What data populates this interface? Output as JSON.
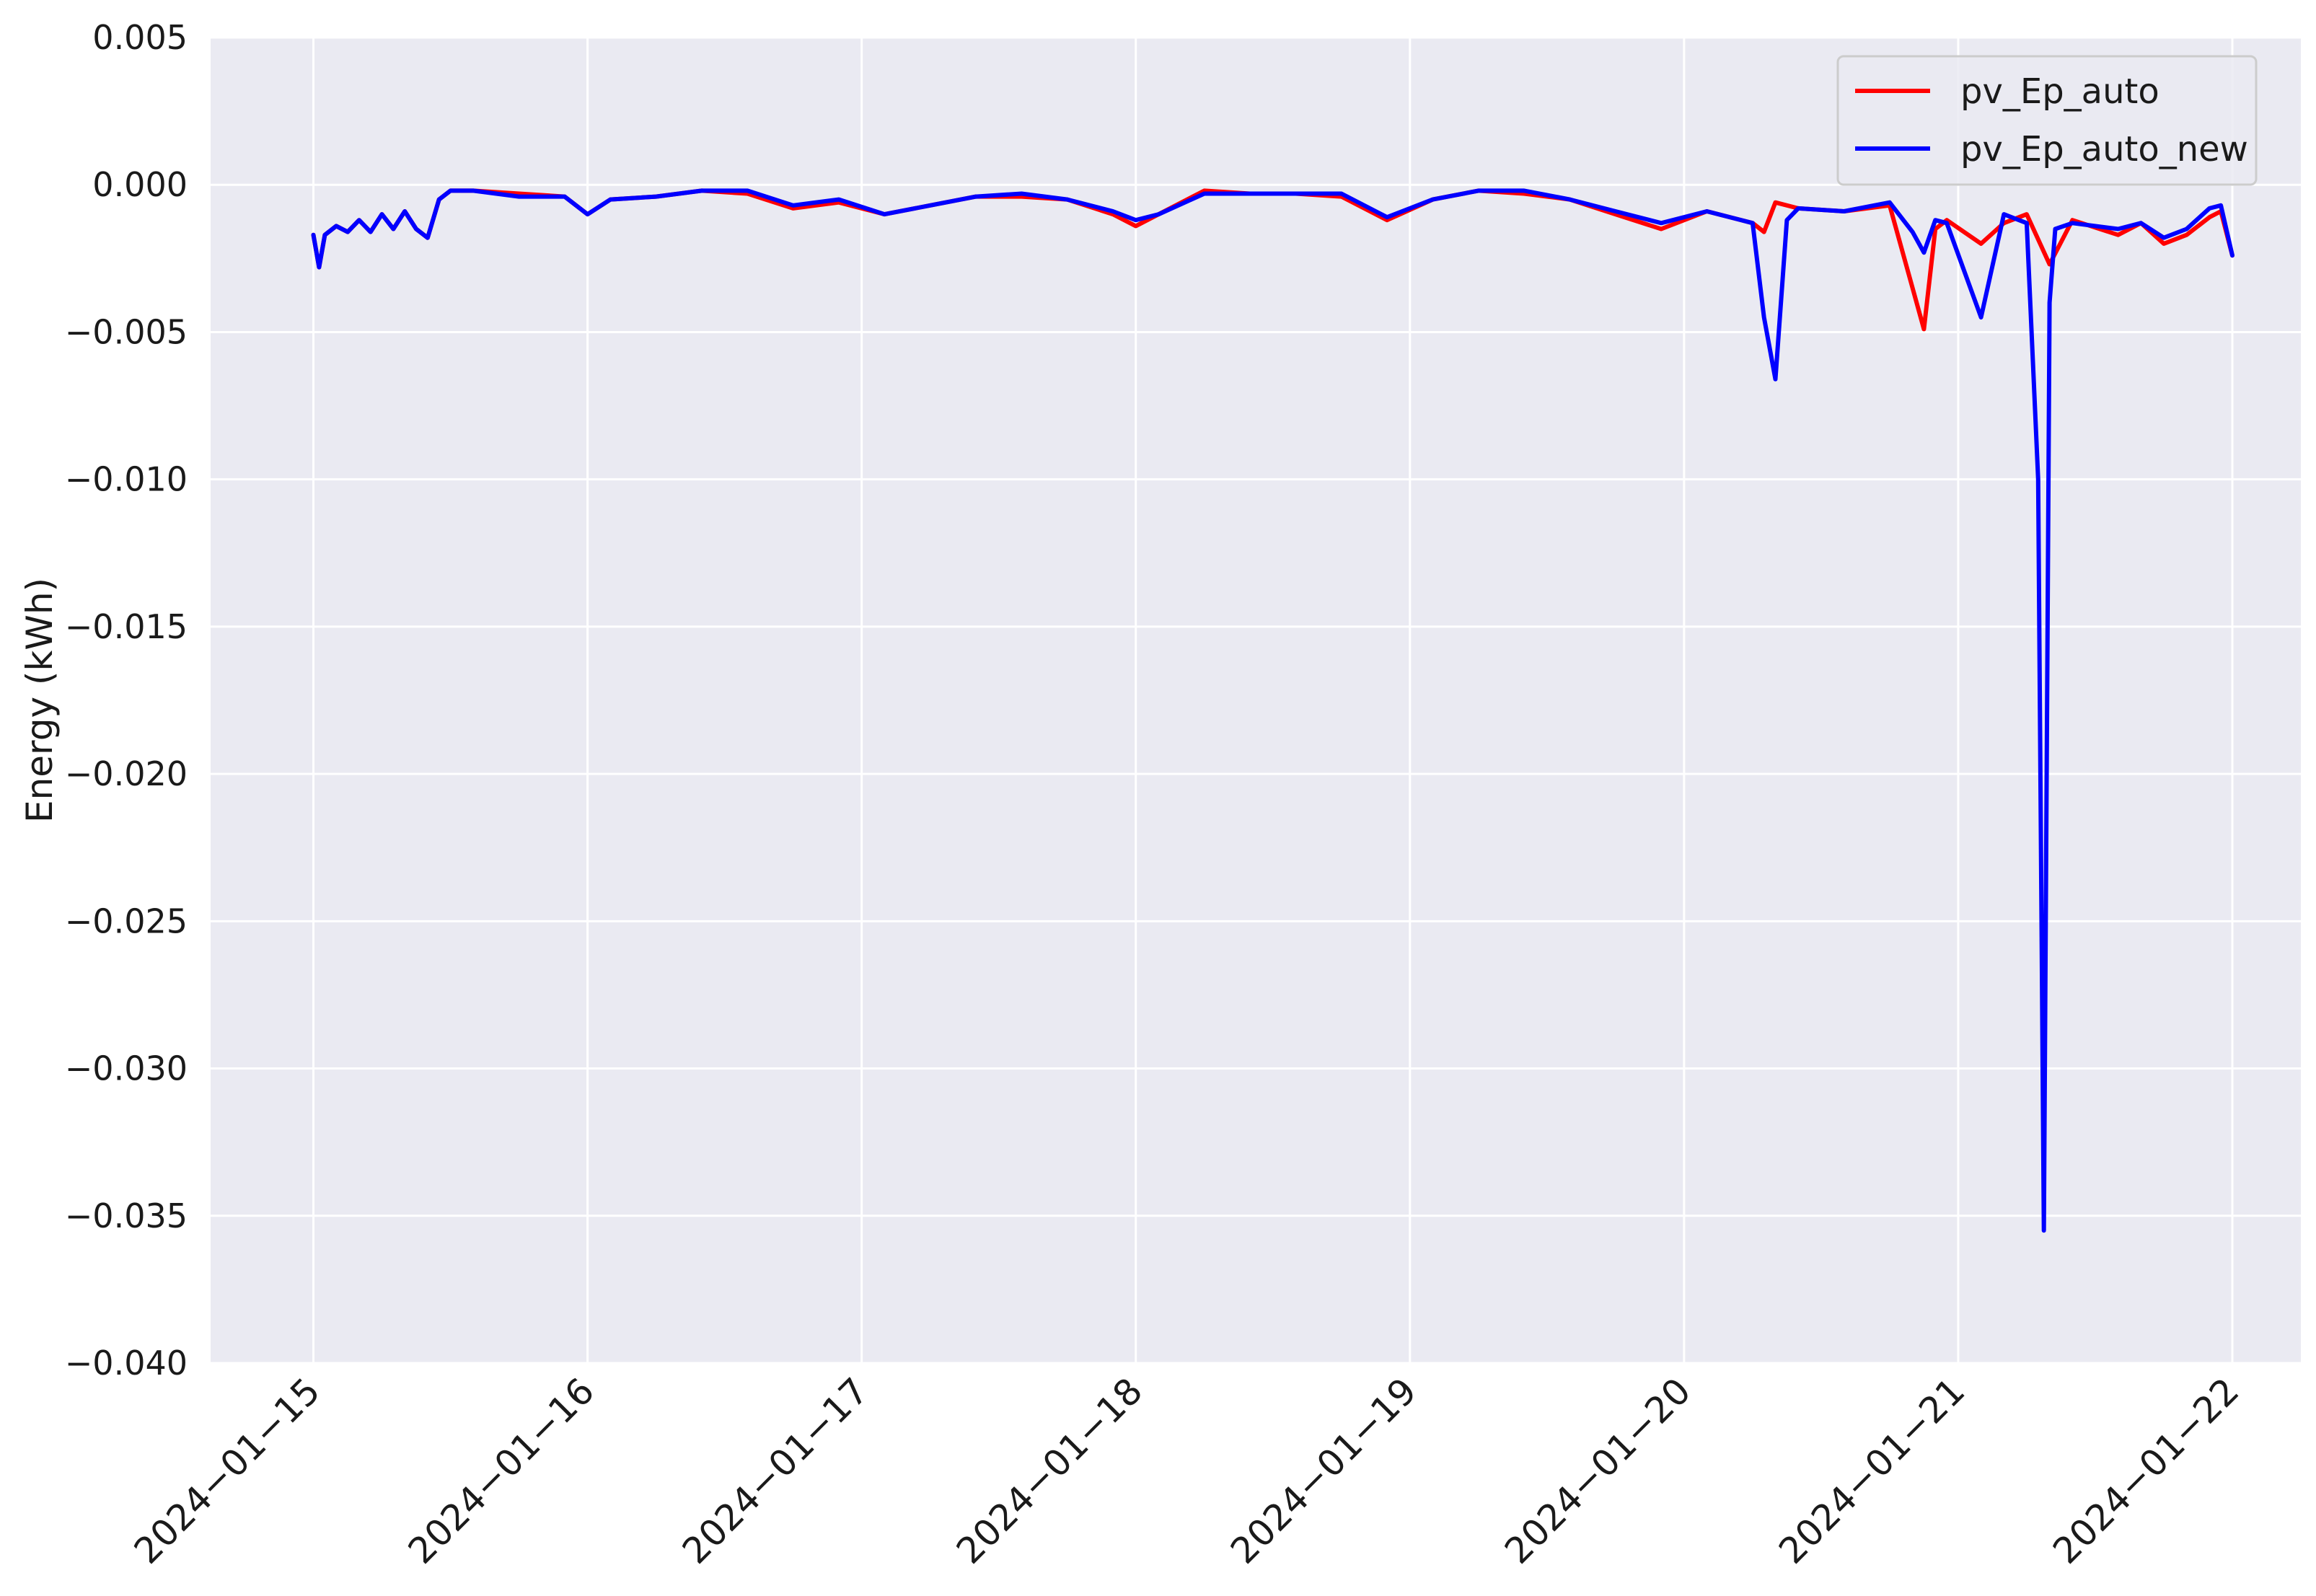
{
  "chart_data": {
    "type": "line",
    "title": "",
    "xlabel": "",
    "ylabel": "Energy (kWh)",
    "x_tick_labels": [
      "2024−01−15",
      "2024−01−16",
      "2024−01−17",
      "2024−01−18",
      "2024−01−19",
      "2024−01−20",
      "2024−01−21",
      "2024−01−22"
    ],
    "x_tick_dates": [
      "2024-01-15",
      "2024-01-16",
      "2024-01-17",
      "2024-01-18",
      "2024-01-19",
      "2024-01-20",
      "2024-01-21",
      "2024-01-22"
    ],
    "y_tick_labels": [
      "0.005",
      "0.000",
      "−0.005",
      "−0.010",
      "−0.015",
      "−0.020",
      "−0.025",
      "−0.030",
      "−0.035",
      "−0.040"
    ],
    "y_tick_values": [
      0.005,
      0.0,
      -0.005,
      -0.01,
      -0.015,
      -0.02,
      -0.025,
      -0.03,
      -0.035,
      -0.04
    ],
    "ylim": [
      -0.04,
      0.005
    ],
    "xlim": [
      "2024-01-14 15:00",
      "2024-01-22 06:00"
    ],
    "grid": true,
    "legend_position": "top-right",
    "series": [
      {
        "name": "pv_Ep_auto",
        "color": "#ff0000",
        "x": [
          "2024-01-15 00:00",
          "2024-01-15 00:30",
          "2024-01-15 01:00",
          "2024-01-15 02:00",
          "2024-01-15 03:00",
          "2024-01-15 04:00",
          "2024-01-15 05:00",
          "2024-01-15 06:00",
          "2024-01-15 07:00",
          "2024-01-15 08:00",
          "2024-01-15 09:00",
          "2024-01-15 10:00",
          "2024-01-15 11:00",
          "2024-01-15 12:00",
          "2024-01-15 14:00",
          "2024-01-15 18:00",
          "2024-01-15 22:00",
          "2024-01-16 00:00",
          "2024-01-16 02:00",
          "2024-01-16 06:00",
          "2024-01-16 10:00",
          "2024-01-16 14:00",
          "2024-01-16 18:00",
          "2024-01-16 22:00",
          "2024-01-17 02:00",
          "2024-01-17 06:00",
          "2024-01-17 10:00",
          "2024-01-17 14:00",
          "2024-01-17 18:00",
          "2024-01-17 22:00",
          "2024-01-18 00:00",
          "2024-01-18 02:00",
          "2024-01-18 06:00",
          "2024-01-18 10:00",
          "2024-01-18 14:00",
          "2024-01-18 18:00",
          "2024-01-18 22:00",
          "2024-01-19 02:00",
          "2024-01-19 06:00",
          "2024-01-19 10:00",
          "2024-01-19 14:00",
          "2024-01-19 18:00",
          "2024-01-19 22:00",
          "2024-01-20 02:00",
          "2024-01-20 06:00",
          "2024-01-20 07:00",
          "2024-01-20 08:00",
          "2024-01-20 10:00",
          "2024-01-20 14:00",
          "2024-01-20 18:00",
          "2024-01-20 20:00",
          "2024-01-20 21:00",
          "2024-01-20 22:00",
          "2024-01-20 23:00",
          "2024-01-21 02:00",
          "2024-01-21 04:00",
          "2024-01-21 06:00",
          "2024-01-21 08:00",
          "2024-01-21 10:00",
          "2024-01-21 14:00",
          "2024-01-21 16:00",
          "2024-01-21 18:00",
          "2024-01-21 20:00",
          "2024-01-21 22:00",
          "2024-01-21 23:00",
          "2024-01-22 00:00"
        ],
        "y": [
          -0.0017,
          -0.0028,
          -0.0017,
          -0.0014,
          -0.0016,
          -0.0012,
          -0.0016,
          -0.001,
          -0.0015,
          -0.0009,
          -0.0015,
          -0.0018,
          -0.0005,
          -0.0002,
          -0.0002,
          -0.0003,
          -0.0004,
          -0.001,
          -0.0005,
          -0.0004,
          -0.0002,
          -0.0003,
          -0.0008,
          -0.0006,
          -0.001,
          -0.0007,
          -0.0004,
          -0.0004,
          -0.0005,
          -0.001,
          -0.0014,
          -0.001,
          -0.0002,
          -0.0003,
          -0.0003,
          -0.0004,
          -0.0012,
          -0.0005,
          -0.0002,
          -0.0003,
          -0.0005,
          -0.001,
          -0.0015,
          -0.0009,
          -0.0013,
          -0.0016,
          -0.0006,
          -0.0008,
          -0.0009,
          -0.0007,
          -0.0035,
          -0.0049,
          -0.0015,
          -0.0012,
          -0.002,
          -0.0013,
          -0.001,
          -0.0027,
          -0.0012,
          -0.0017,
          -0.0013,
          -0.002,
          -0.0017,
          -0.0011,
          -0.0009,
          -0.0024
        ]
      },
      {
        "name": "pv_Ep_auto_new",
        "color": "#0000ff",
        "x": [
          "2024-01-15 00:00",
          "2024-01-15 00:30",
          "2024-01-15 01:00",
          "2024-01-15 02:00",
          "2024-01-15 03:00",
          "2024-01-15 04:00",
          "2024-01-15 05:00",
          "2024-01-15 06:00",
          "2024-01-15 07:00",
          "2024-01-15 08:00",
          "2024-01-15 09:00",
          "2024-01-15 10:00",
          "2024-01-15 11:00",
          "2024-01-15 12:00",
          "2024-01-15 14:00",
          "2024-01-15 18:00",
          "2024-01-15 22:00",
          "2024-01-16 00:00",
          "2024-01-16 02:00",
          "2024-01-16 06:00",
          "2024-01-16 10:00",
          "2024-01-16 14:00",
          "2024-01-16 18:00",
          "2024-01-16 22:00",
          "2024-01-17 02:00",
          "2024-01-17 06:00",
          "2024-01-17 10:00",
          "2024-01-17 14:00",
          "2024-01-17 18:00",
          "2024-01-17 22:00",
          "2024-01-18 00:00",
          "2024-01-18 02:00",
          "2024-01-18 06:00",
          "2024-01-18 10:00",
          "2024-01-18 14:00",
          "2024-01-18 18:00",
          "2024-01-18 22:00",
          "2024-01-19 02:00",
          "2024-01-19 06:00",
          "2024-01-19 10:00",
          "2024-01-19 14:00",
          "2024-01-19 18:00",
          "2024-01-19 22:00",
          "2024-01-20 02:00",
          "2024-01-20 06:00",
          "2024-01-20 07:00",
          "2024-01-20 08:00",
          "2024-01-20 09:00",
          "2024-01-20 10:00",
          "2024-01-20 14:00",
          "2024-01-20 18:00",
          "2024-01-20 20:00",
          "2024-01-20 21:00",
          "2024-01-20 22:00",
          "2024-01-20 23:00",
          "2024-01-21 02:00",
          "2024-01-21 04:00",
          "2024-01-21 06:00",
          "2024-01-21 07:00",
          "2024-01-21 07:30",
          "2024-01-21 08:00",
          "2024-01-21 08:30",
          "2024-01-21 10:00",
          "2024-01-21 14:00",
          "2024-01-21 16:00",
          "2024-01-21 18:00",
          "2024-01-21 20:00",
          "2024-01-21 22:00",
          "2024-01-21 23:00",
          "2024-01-22 00:00"
        ],
        "y": [
          -0.0017,
          -0.0028,
          -0.0017,
          -0.0014,
          -0.0016,
          -0.0012,
          -0.0016,
          -0.001,
          -0.0015,
          -0.0009,
          -0.0015,
          -0.0018,
          -0.0005,
          -0.0002,
          -0.0002,
          -0.0004,
          -0.0004,
          -0.001,
          -0.0005,
          -0.0004,
          -0.0002,
          -0.0002,
          -0.0007,
          -0.0005,
          -0.001,
          -0.0007,
          -0.0004,
          -0.0003,
          -0.0005,
          -0.0009,
          -0.0012,
          -0.001,
          -0.0003,
          -0.0003,
          -0.0003,
          -0.0003,
          -0.0011,
          -0.0005,
          -0.0002,
          -0.0002,
          -0.0005,
          -0.0009,
          -0.0013,
          -0.0009,
          -0.0013,
          -0.0045,
          -0.0066,
          -0.0012,
          -0.0008,
          -0.0009,
          -0.0006,
          -0.0016,
          -0.0023,
          -0.0012,
          -0.0013,
          -0.0045,
          -0.001,
          -0.0013,
          -0.01,
          -0.0355,
          -0.004,
          -0.0015,
          -0.0013,
          -0.0015,
          -0.0013,
          -0.0018,
          -0.0015,
          -0.0008,
          -0.0007,
          -0.0024
        ]
      }
    ]
  }
}
